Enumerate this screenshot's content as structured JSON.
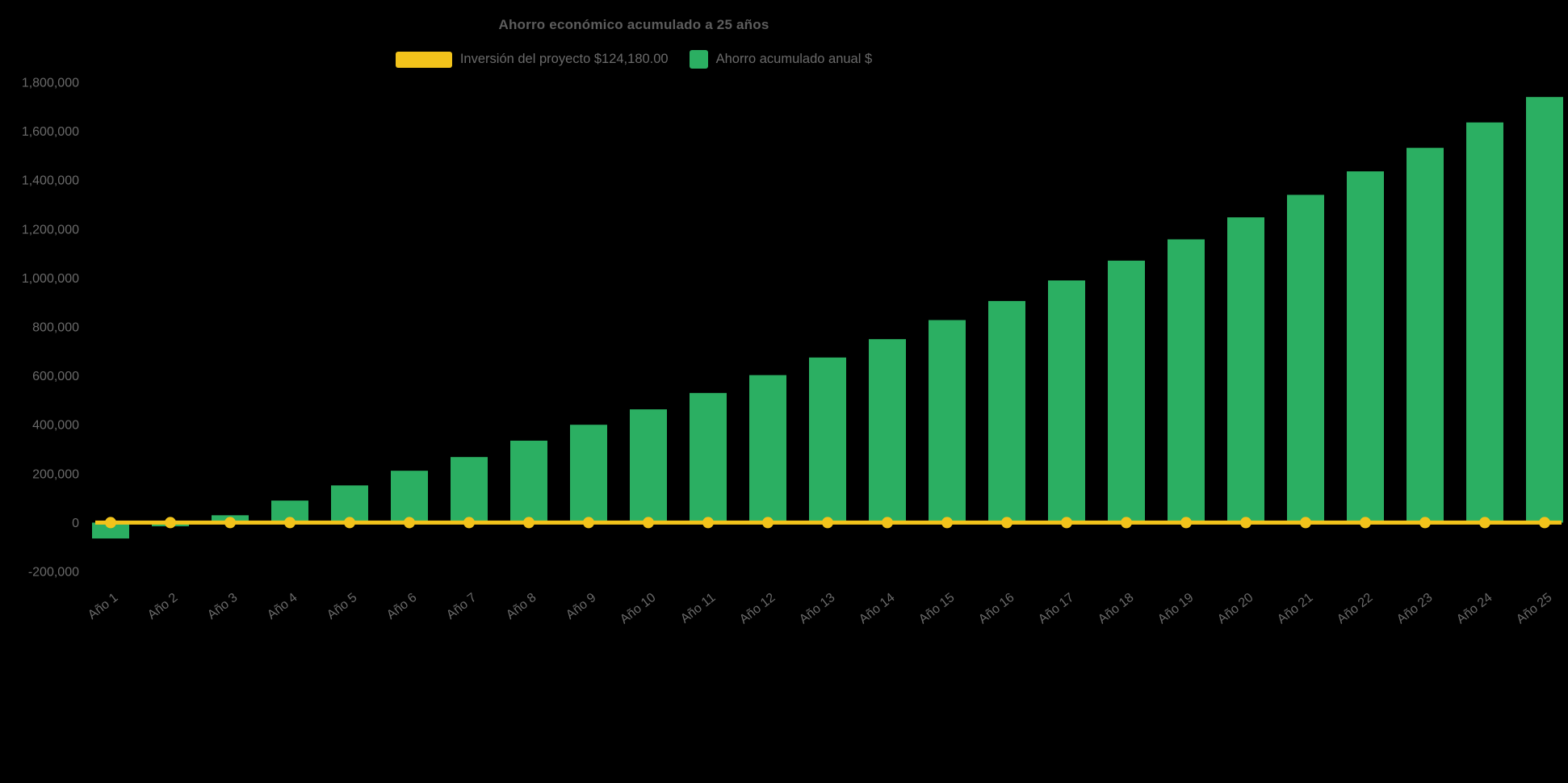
{
  "title": "Ahorro económico acumulado a 25 años",
  "legend": {
    "investment": {
      "label": "Inversión del proyecto $124,180.00",
      "color": "#F2C31B"
    },
    "savings": {
      "label": "Ahorro acumulado anual $",
      "color": "#2BAF62"
    }
  },
  "colors": {
    "background": "#000000",
    "text": "#6a6a6a",
    "title_text": "#5d5d5d",
    "bar": "#2BAF62",
    "line": "#F2C31B"
  },
  "chart_data": {
    "type": "bar",
    "title": "Ahorro económico acumulado a 25 años",
    "xlabel": "",
    "ylabel": "",
    "ylim": [
      -200000,
      1800000
    ],
    "y_tick_step": 200000,
    "grid": false,
    "legend_position": "top",
    "categories": [
      "Año 1",
      "Año 2",
      "Año 3",
      "Año 4",
      "Año 5",
      "Año 6",
      "Año 7",
      "Año 8",
      "Año 9",
      "Año 10",
      "Año 11",
      "Año 12",
      "Año 13",
      "Año 14",
      "Año 15",
      "Año 16",
      "Año 17",
      "Año 18",
      "Año 19",
      "Año 20",
      "Año 21",
      "Año 22",
      "Año 23",
      "Año 24",
      "Año 25"
    ],
    "series": [
      {
        "name": "Ahorro acumulado anual $",
        "type": "bar",
        "color": "#2BAF62",
        "values": [
          -65000,
          -15000,
          30000,
          90000,
          152000,
          212000,
          268000,
          335000,
          400000,
          463000,
          530000,
          603000,
          675000,
          750000,
          828000,
          906000,
          990000,
          1071000,
          1158000,
          1248000,
          1340000,
          1436000,
          1532000,
          1636000,
          1740000
        ]
      },
      {
        "name": "Inversión del proyecto $124,180.00",
        "type": "line",
        "color": "#F2C31B",
        "labeled_amount": 124180,
        "plotted_value": 0
      }
    ]
  }
}
